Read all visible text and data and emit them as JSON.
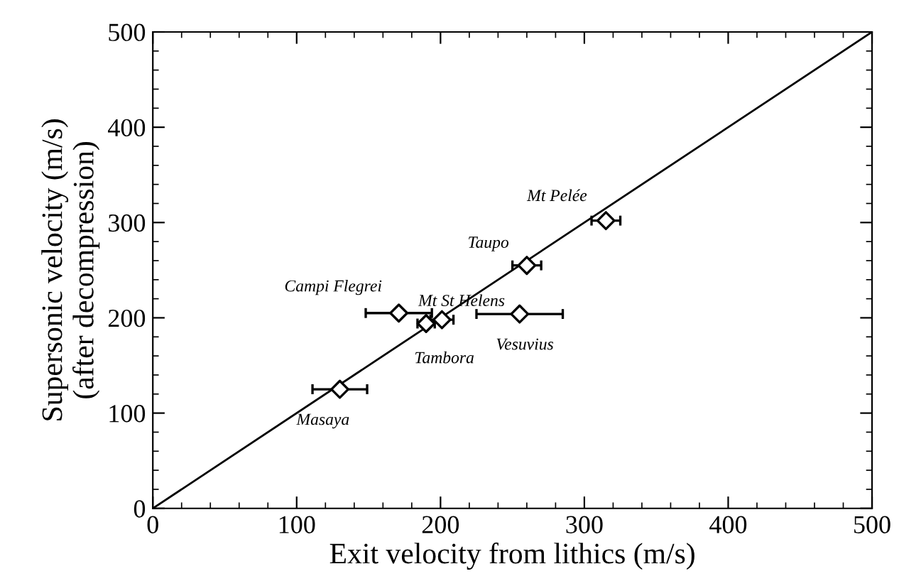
{
  "chart_data": {
    "type": "scatter",
    "xlabel": "Exit velocity from lithics (m/s)",
    "ylabel": "Supersonic velocity (m/s)\n(after decompression)",
    "xlim": [
      0,
      500
    ],
    "ylim": [
      0,
      500
    ],
    "xticks": [
      0,
      100,
      200,
      300,
      400,
      500
    ],
    "yticks": [
      0,
      100,
      200,
      300,
      400,
      500
    ],
    "grid": false,
    "legend": false,
    "series": [
      {
        "color": "#000000",
        "marker": "diamond",
        "x": [
          130,
          171,
          190,
          201,
          255,
          260,
          315
        ],
        "values": [
          125,
          205,
          194,
          198,
          204,
          255,
          302
        ],
        "xerrors": [
          19,
          23,
          6,
          8,
          30,
          10,
          10
        ]
      },
      {
        "type": "line",
        "color": "#000000",
        "marker": "none",
        "line_style": "solid",
        "x": [
          0,
          500
        ],
        "values": [
          0,
          500
        ]
      }
    ],
    "annotations": [
      {
        "text": "Masaya",
        "x": 130,
        "y": 125
      },
      {
        "text": "Campi Flegrei",
        "x": 171,
        "y": 205
      },
      {
        "text": "Tambora",
        "x": 190,
        "y": 194
      },
      {
        "text": "Mt St Helens",
        "x": 201,
        "y": 198
      },
      {
        "text": "Vesuvius",
        "x": 255,
        "y": 204
      },
      {
        "text": "Taupo",
        "x": 260,
        "y": 255
      },
      {
        "text": "Mt Pelée",
        "x": 315,
        "y": 302
      }
    ]
  }
}
